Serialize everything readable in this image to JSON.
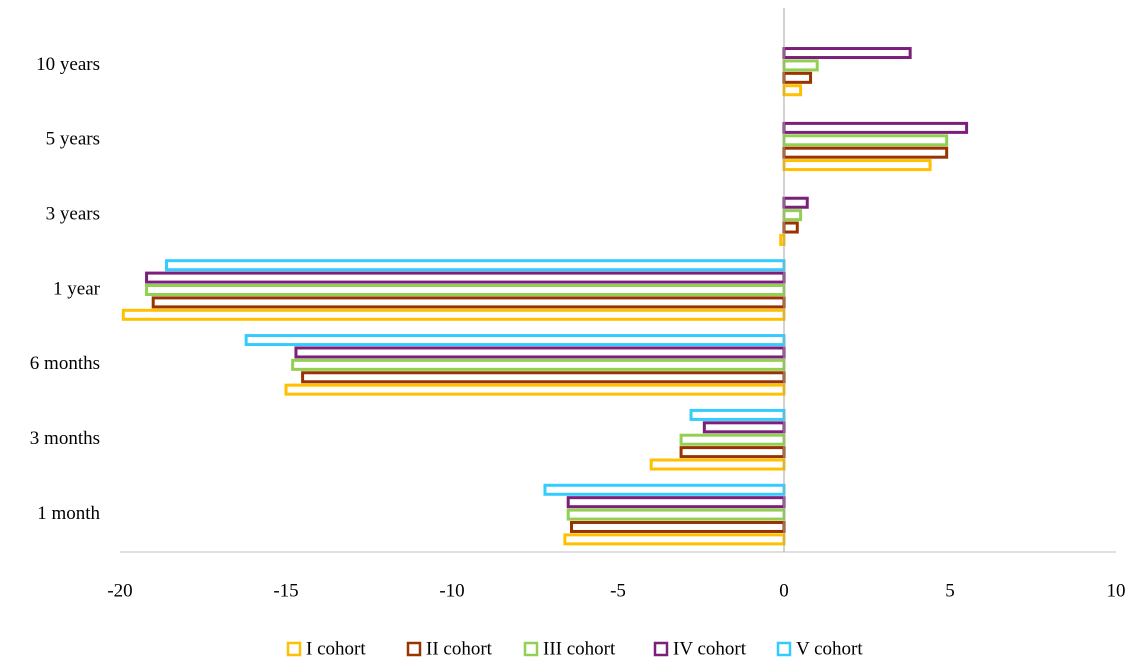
{
  "chart_data": {
    "type": "hbar",
    "categories": [
      "1 month",
      "3 months",
      "6 months",
      "1 year",
      "3 years",
      "5 years",
      "10 years"
    ],
    "series": [
      {
        "name": "I cohort",
        "color": "#ffc000",
        "values": [
          -6.6,
          -4.0,
          -15.0,
          -19.9,
          -0.1,
          4.4,
          0.5
        ]
      },
      {
        "name": "II cohort",
        "color": "#993300",
        "values": [
          -6.4,
          -3.1,
          -14.5,
          -19.0,
          0.4,
          4.9,
          0.8
        ]
      },
      {
        "name": "III cohort",
        "color": "#92d050",
        "values": [
          -6.5,
          -3.1,
          -14.8,
          -19.2,
          0.5,
          4.9,
          1.0
        ]
      },
      {
        "name": "IV cohort",
        "color": "#7b1f7b",
        "values": [
          -6.5,
          -2.4,
          -14.7,
          -19.2,
          0.7,
          5.5,
          3.8
        ]
      },
      {
        "name": "V cohort",
        "color": "#33ccff",
        "values": [
          -7.2,
          -2.8,
          -16.2,
          -18.6,
          null,
          null,
          null
        ]
      }
    ],
    "xlim": [
      -20,
      10
    ],
    "xticks": [
      -20,
      -15,
      -10,
      -5,
      0,
      5,
      10
    ],
    "legend": "bottom"
  }
}
